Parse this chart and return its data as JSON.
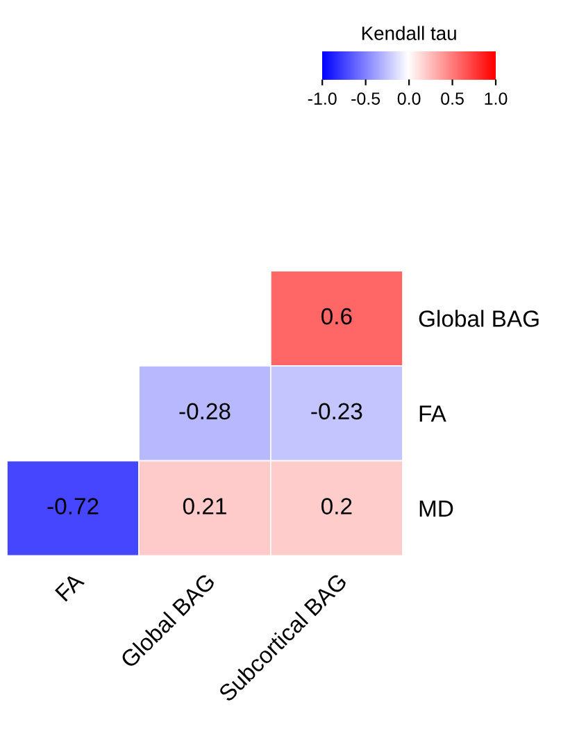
{
  "chart_data": {
    "type": "heatmap",
    "clabel": "Kendall tau",
    "categories": [
      "FA",
      "Global BAG",
      "Subcortical BAG"
    ],
    "y_categories": [
      "Global BAG",
      "FA",
      "MD"
    ],
    "cells": [
      [
        null,
        null,
        0.6
      ],
      [
        null,
        -0.28,
        -0.23
      ],
      [
        -0.72,
        0.21,
        0.2
      ]
    ],
    "data_labels": true,
    "clim": [
      -1,
      1
    ],
    "cticks": [
      {
        "value": -1,
        "label": "-1.0"
      },
      {
        "value": -0.5,
        "label": "-0.5"
      },
      {
        "value": 0,
        "label": "0.0"
      },
      {
        "value": 0.5,
        "label": "0.5"
      },
      {
        "value": 1,
        "label": "1.0"
      }
    ]
  }
}
